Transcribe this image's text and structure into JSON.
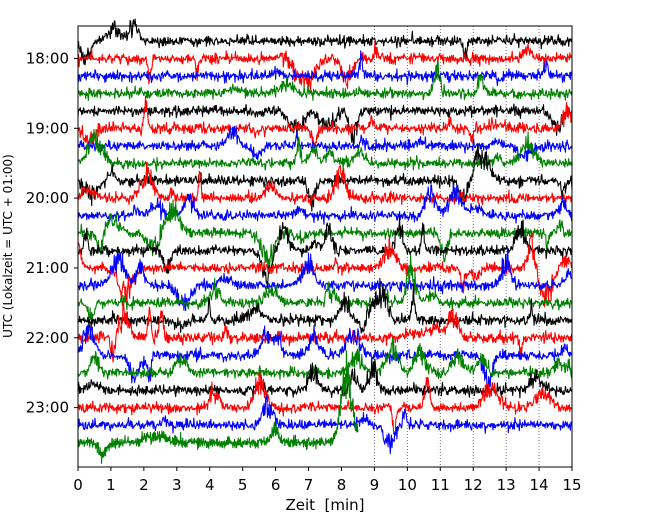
{
  "chart_data": {
    "type": "line",
    "title": "",
    "xlabel": "Zeit  [min]",
    "ylabel": "UTC (Lokalzeit = UTC + 01:00)",
    "xlim": [
      0,
      15
    ],
    "x_ticks": [
      "0",
      "1",
      "2",
      "3",
      "4",
      "5",
      "6",
      "7",
      "8",
      "9",
      "10",
      "11",
      "12",
      "13",
      "14",
      "15"
    ],
    "y_time_start": "17:45",
    "y_time_end": "23:45",
    "y_ticks": [
      "18:00",
      "19:00",
      "20:00",
      "21:00",
      "22:00",
      "23:00"
    ],
    "trace_interval_min": 15,
    "trace_colors": [
      "#000000",
      "#ff0000",
      "#0000ff",
      "#008000"
    ],
    "last_trace_end_min": 8.5,
    "vertical_gridlines_from_min": 9,
    "traces": [
      {
        "start": "17:45",
        "color": "#000000"
      },
      {
        "start": "18:00",
        "color": "#ff0000"
      },
      {
        "start": "18:15",
        "color": "#0000ff"
      },
      {
        "start": "18:30",
        "color": "#008000"
      },
      {
        "start": "18:45",
        "color": "#000000"
      },
      {
        "start": "19:00",
        "color": "#ff0000"
      },
      {
        "start": "19:15",
        "color": "#0000ff"
      },
      {
        "start": "19:30",
        "color": "#008000"
      },
      {
        "start": "19:45",
        "color": "#000000"
      },
      {
        "start": "20:00",
        "color": "#ff0000"
      },
      {
        "start": "20:15",
        "color": "#0000ff"
      },
      {
        "start": "20:30",
        "color": "#008000"
      },
      {
        "start": "20:45",
        "color": "#000000"
      },
      {
        "start": "21:00",
        "color": "#ff0000"
      },
      {
        "start": "21:15",
        "color": "#0000ff"
      },
      {
        "start": "21:30",
        "color": "#008000"
      },
      {
        "start": "21:45",
        "color": "#000000"
      },
      {
        "start": "22:00",
        "color": "#ff0000"
      },
      {
        "start": "22:15",
        "color": "#0000ff"
      },
      {
        "start": "22:30",
        "color": "#008000"
      },
      {
        "start": "22:45",
        "color": "#000000"
      },
      {
        "start": "23:00",
        "color": "#ff0000"
      },
      {
        "start": "23:15",
        "color": "#0000ff"
      },
      {
        "start": "23:30",
        "color": "#008000"
      }
    ]
  }
}
